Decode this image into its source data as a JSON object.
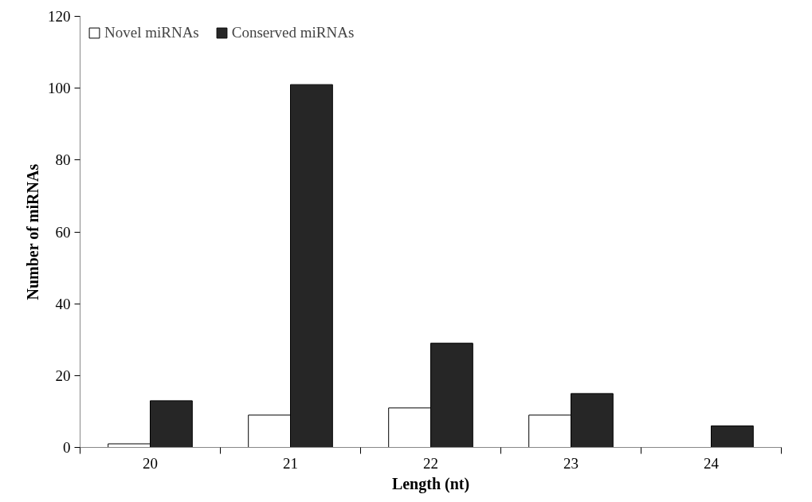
{
  "chart_data": {
    "type": "bar",
    "xlabel": "Length (nt)",
    "ylabel": "Number of miRNAs",
    "categories": [
      "20",
      "21",
      "22",
      "23",
      "24"
    ],
    "series": [
      {
        "name": "Novel miRNAs",
        "color": "#ffffff",
        "values": [
          1,
          9,
          11,
          9,
          0
        ]
      },
      {
        "name": "Conserved miRNAs",
        "color": "#262626",
        "values": [
          13,
          101,
          29,
          15,
          6
        ]
      }
    ],
    "ylim": [
      0,
      120
    ],
    "yticks": [
      0,
      20,
      40,
      60,
      80,
      100,
      120
    ],
    "grid": false,
    "legend": "top left"
  }
}
